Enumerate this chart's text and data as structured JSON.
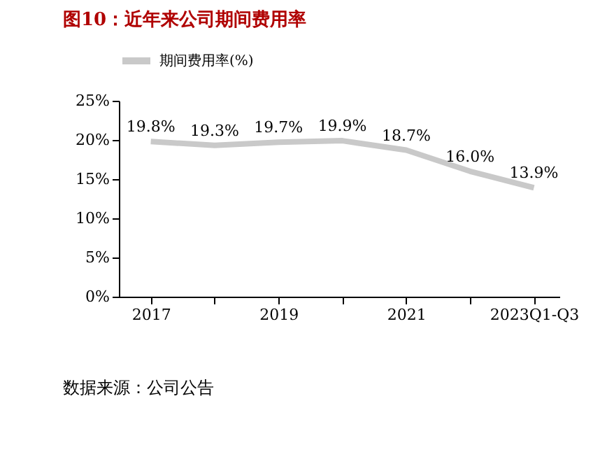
{
  "chart_data": {
    "type": "line",
    "title": "图10：近年来公司期间费用率",
    "categories": [
      "2017",
      null,
      "2019",
      null,
      "2021",
      null,
      "2023Q1-Q3"
    ],
    "series": [
      {
        "name": "期间费用率(%)",
        "color": "#c9c9c9",
        "values": [
          19.8,
          19.3,
          19.7,
          19.9,
          18.7,
          16.0,
          13.9
        ],
        "value_labels": [
          "19.8%",
          "19.3%",
          "19.7%",
          "19.9%",
          "18.7%",
          "16.0%",
          "13.9%"
        ]
      }
    ],
    "ylim": [
      0,
      25
    ],
    "yticks": [
      {
        "value": 0,
        "label": "0%"
      },
      {
        "value": 5,
        "label": "5%"
      },
      {
        "value": 10,
        "label": "10%"
      },
      {
        "value": 15,
        "label": "15%"
      },
      {
        "value": 20,
        "label": "20%"
      },
      {
        "value": 25,
        "label": "25%"
      }
    ],
    "grid": false,
    "legend": "top",
    "marker": "none",
    "line_style": "solid",
    "annotations": [
      "数据来源：公司公告"
    ]
  }
}
